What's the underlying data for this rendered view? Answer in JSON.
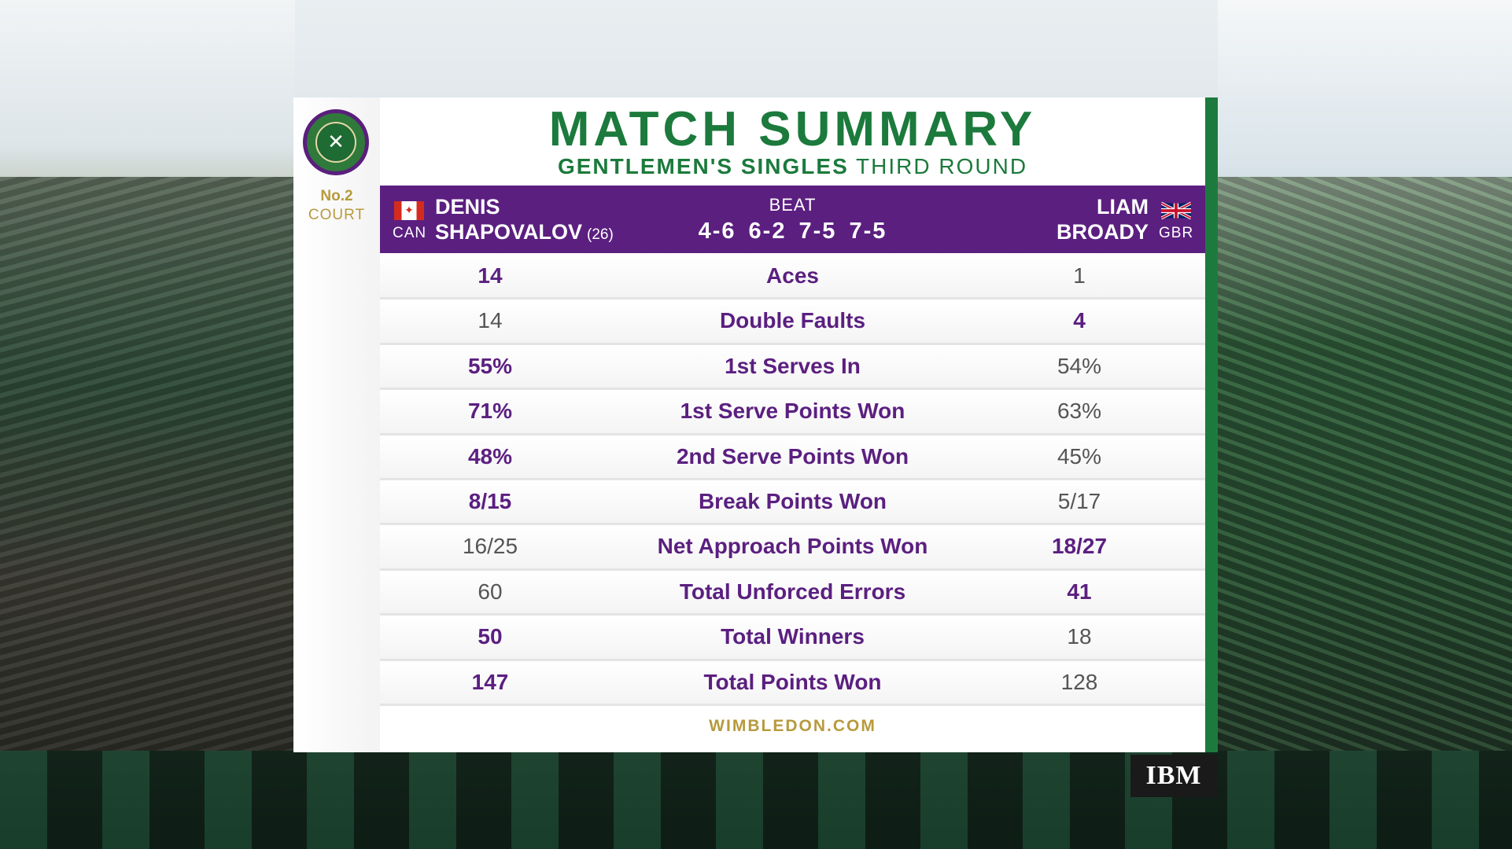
{
  "broadcast": {
    "court": {
      "line1": "No.2",
      "line2": "COURT"
    },
    "title": "MATCH SUMMARY",
    "event": {
      "strong": "GENTLEMEN'S SINGLES",
      "light": "THIRD ROUND"
    },
    "sponsor": "IBM",
    "footer": "WIMBLEDON.COM"
  },
  "match": {
    "player1": {
      "first": "DENIS",
      "last": "SHAPOVALOV",
      "seed": "(26)",
      "country": "CAN"
    },
    "player2": {
      "first": "LIAM",
      "last": "BROADY",
      "country": "GBR"
    },
    "result_word": "BEAT",
    "score": "4-6 6-2 7-5 7-5"
  },
  "stats": [
    {
      "label": "Aces",
      "p1": "14",
      "p2": "1",
      "winner": "p1"
    },
    {
      "label": "Double Faults",
      "p1": "14",
      "p2": "4",
      "winner": "p2"
    },
    {
      "label": "1st Serves In",
      "p1": "55%",
      "p2": "54%",
      "winner": "p1"
    },
    {
      "label": "1st Serve Points Won",
      "p1": "71%",
      "p2": "63%",
      "winner": "p1"
    },
    {
      "label": "2nd Serve Points Won",
      "p1": "48%",
      "p2": "45%",
      "winner": "p1"
    },
    {
      "label": "Break Points Won",
      "p1": "8/15",
      "p2": "5/17",
      "winner": "p1"
    },
    {
      "label": "Net Approach Points Won",
      "p1": "16/25",
      "p2": "18/27",
      "winner": "p2"
    },
    {
      "label": "Total Unforced Errors",
      "p1": "60",
      "p2": "41",
      "winner": "p2"
    },
    {
      "label": "Total Winners",
      "p1": "50",
      "p2": "18",
      "winner": "p1"
    },
    {
      "label": "Total Points Won",
      "p1": "147",
      "p2": "128",
      "winner": "p1"
    }
  ],
  "colors": {
    "purple": "#5b1f80",
    "green": "#1b7a3c",
    "gold": "#b79a3d"
  },
  "icons": {
    "logo": "wimbledon-crossed-rackets-logo",
    "flag_left": "canada-flag-icon",
    "flag_right": "uk-flag-icon"
  }
}
